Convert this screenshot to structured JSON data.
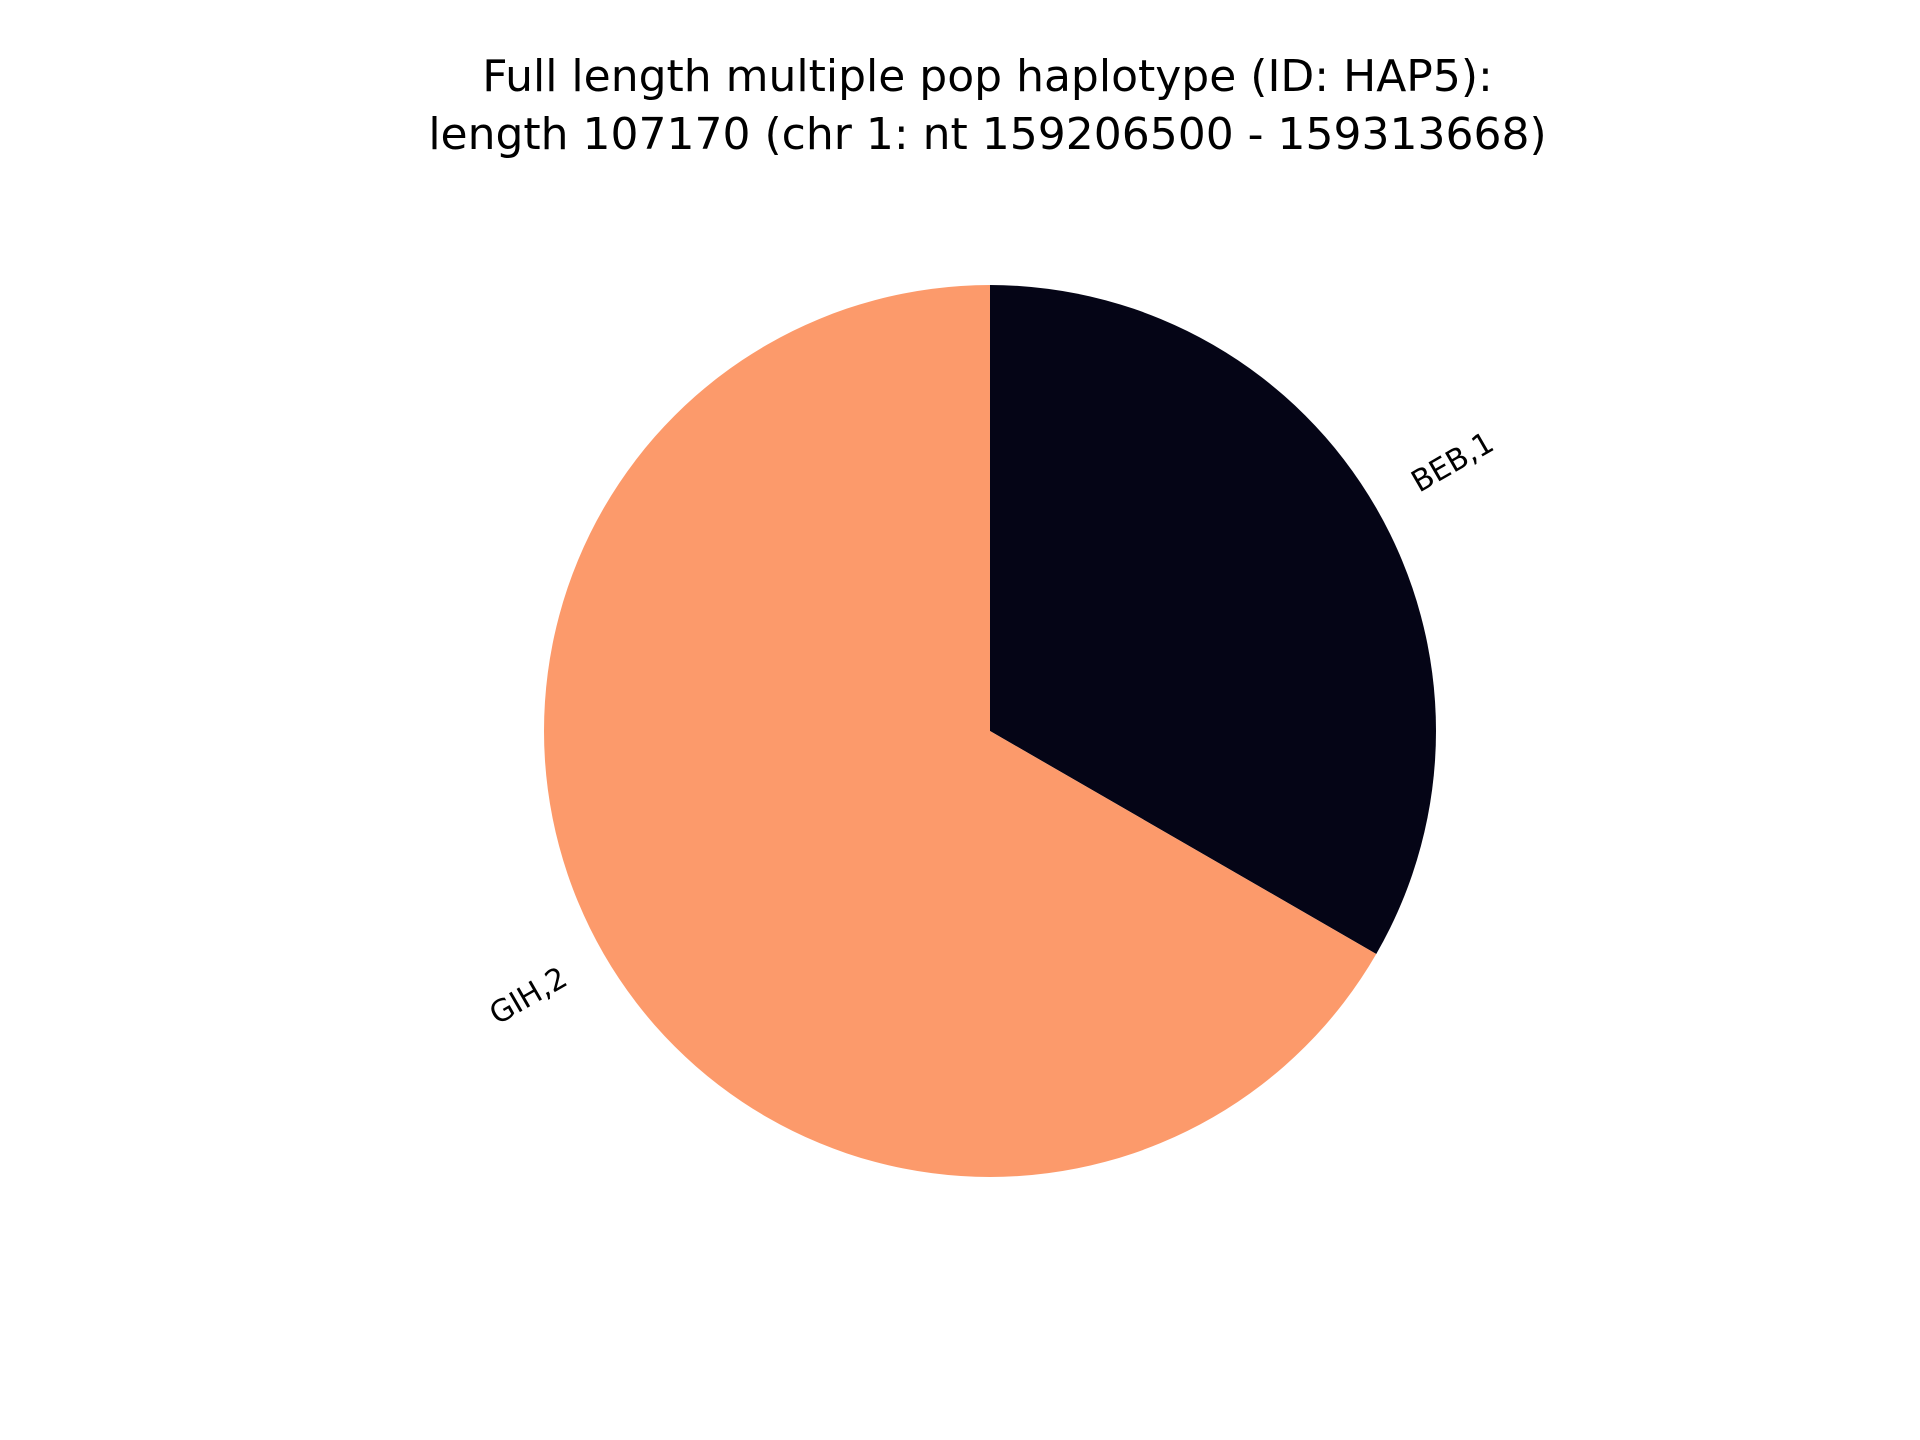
{
  "chart_data": {
    "type": "pie",
    "title": "Full length multiple pop haplotype (ID: HAP5):",
    "subtitle": "length 107170 (chr 1: nt 159206500 - 159313668)",
    "start_angle_deg": 90,
    "direction": "clockwise",
    "slices": [
      {
        "label": "BEB,1",
        "category": "BEB",
        "value": 1,
        "color": "#050516"
      },
      {
        "label": "GIH,2",
        "category": "GIH",
        "value": 2,
        "color": "#fc9a6b"
      }
    ]
  }
}
